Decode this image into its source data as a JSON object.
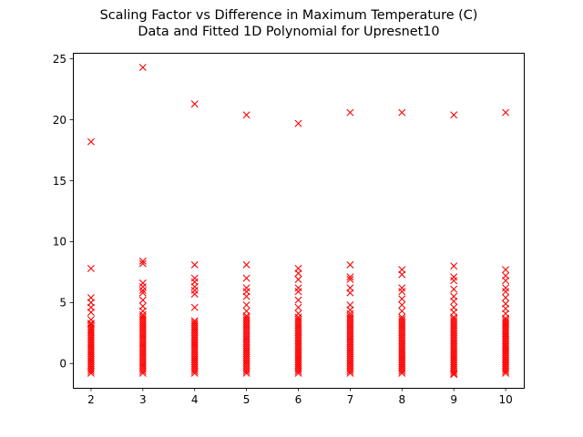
{
  "chart_data": {
    "type": "scatter",
    "title": "Scaling Factor vs Difference in Maximum Temperature (C)",
    "subtitle": "Data and Fitted 1D Polynomial for Upresnet10",
    "xlabel": "",
    "ylabel": "",
    "xlim": [
      1.65,
      10.35
    ],
    "ylim": [
      -2.0,
      25.5
    ],
    "x_ticks": [
      2,
      3,
      4,
      5,
      6,
      7,
      8,
      9,
      10
    ],
    "y_ticks": [
      0,
      5,
      10,
      15,
      20,
      25
    ],
    "grid": false,
    "marker": "x",
    "color": "#ff0000",
    "series": [
      {
        "points": [
          {
            "x": 2,
            "y": 18.2
          },
          {
            "x": 2,
            "y": 7.8
          },
          {
            "x": 2,
            "y": 5.4
          },
          {
            "x": 2,
            "y": 5.0
          },
          {
            "x": 2,
            "y": 4.6
          },
          {
            "x": 2,
            "y": 4.2
          },
          {
            "x": 2,
            "y": 3.6
          },
          {
            "x": 2,
            "y": 3.3
          },
          {
            "x": 3,
            "y": 24.3
          },
          {
            "x": 3,
            "y": 8.4
          },
          {
            "x": 3,
            "y": 8.2
          },
          {
            "x": 3,
            "y": 6.6
          },
          {
            "x": 3,
            "y": 6.3
          },
          {
            "x": 3,
            "y": 6.0
          },
          {
            "x": 3,
            "y": 5.8
          },
          {
            "x": 3,
            "y": 5.2
          },
          {
            "x": 3,
            "y": 4.7
          },
          {
            "x": 3,
            "y": 4.3
          },
          {
            "x": 4,
            "y": 21.3
          },
          {
            "x": 4,
            "y": 8.1
          },
          {
            "x": 4,
            "y": 7.0
          },
          {
            "x": 4,
            "y": 6.7
          },
          {
            "x": 4,
            "y": 6.3
          },
          {
            "x": 4,
            "y": 6.0
          },
          {
            "x": 4,
            "y": 5.7
          },
          {
            "x": 4,
            "y": 4.6
          },
          {
            "x": 5,
            "y": 20.4
          },
          {
            "x": 5,
            "y": 8.1
          },
          {
            "x": 5,
            "y": 7.0
          },
          {
            "x": 5,
            "y": 6.2
          },
          {
            "x": 5,
            "y": 5.9
          },
          {
            "x": 5,
            "y": 5.5
          },
          {
            "x": 5,
            "y": 4.8
          },
          {
            "x": 5,
            "y": 4.3
          },
          {
            "x": 6,
            "y": 19.7
          },
          {
            "x": 6,
            "y": 7.8
          },
          {
            "x": 6,
            "y": 7.4
          },
          {
            "x": 6,
            "y": 6.9
          },
          {
            "x": 6,
            "y": 6.2
          },
          {
            "x": 6,
            "y": 5.9
          },
          {
            "x": 6,
            "y": 5.2
          },
          {
            "x": 6,
            "y": 4.6
          },
          {
            "x": 6,
            "y": 4.1
          },
          {
            "x": 7,
            "y": 20.6
          },
          {
            "x": 7,
            "y": 8.1
          },
          {
            "x": 7,
            "y": 7.1
          },
          {
            "x": 7,
            "y": 6.9
          },
          {
            "x": 7,
            "y": 6.2
          },
          {
            "x": 7,
            "y": 5.8
          },
          {
            "x": 7,
            "y": 4.8
          },
          {
            "x": 7,
            "y": 4.4
          },
          {
            "x": 7,
            "y": 4.1
          },
          {
            "x": 8,
            "y": 20.6
          },
          {
            "x": 8,
            "y": 7.7
          },
          {
            "x": 8,
            "y": 7.3
          },
          {
            "x": 8,
            "y": 6.2
          },
          {
            "x": 8,
            "y": 5.9
          },
          {
            "x": 8,
            "y": 5.3
          },
          {
            "x": 8,
            "y": 4.8
          },
          {
            "x": 8,
            "y": 4.3
          },
          {
            "x": 9,
            "y": 20.4
          },
          {
            "x": 9,
            "y": 8.0
          },
          {
            "x": 9,
            "y": 7.1
          },
          {
            "x": 9,
            "y": 6.8
          },
          {
            "x": 9,
            "y": 6.1
          },
          {
            "x": 9,
            "y": 5.5
          },
          {
            "x": 9,
            "y": 5.1
          },
          {
            "x": 9,
            "y": 4.6
          },
          {
            "x": 9,
            "y": 4.2
          },
          {
            "x": 9,
            "y": -0.9
          },
          {
            "x": 10,
            "y": 20.6
          },
          {
            "x": 10,
            "y": 7.7
          },
          {
            "x": 10,
            "y": 7.2
          },
          {
            "x": 10,
            "y": 6.8
          },
          {
            "x": 10,
            "y": 6.2
          },
          {
            "x": 10,
            "y": 5.9
          },
          {
            "x": 10,
            "y": 5.4
          },
          {
            "x": 10,
            "y": 4.9
          },
          {
            "x": 10,
            "y": 4.5
          },
          {
            "x": 10,
            "y": 4.1
          }
        ],
        "dense_columns": [
          {
            "x": 2,
            "y_min": -0.8,
            "y_max": 3.2,
            "count": 26
          },
          {
            "x": 3,
            "y_min": -0.8,
            "y_max": 4.0,
            "count": 30
          },
          {
            "x": 4,
            "y_min": -0.8,
            "y_max": 3.5,
            "count": 28
          },
          {
            "x": 5,
            "y_min": -0.8,
            "y_max": 3.9,
            "count": 30
          },
          {
            "x": 6,
            "y_min": -0.8,
            "y_max": 3.8,
            "count": 30
          },
          {
            "x": 7,
            "y_min": -0.8,
            "y_max": 3.9,
            "count": 30
          },
          {
            "x": 8,
            "y_min": -0.8,
            "y_max": 3.8,
            "count": 30
          },
          {
            "x": 9,
            "y_min": -0.8,
            "y_max": 3.8,
            "count": 30
          },
          {
            "x": 10,
            "y_min": -0.8,
            "y_max": 3.7,
            "count": 30
          }
        ]
      }
    ]
  }
}
